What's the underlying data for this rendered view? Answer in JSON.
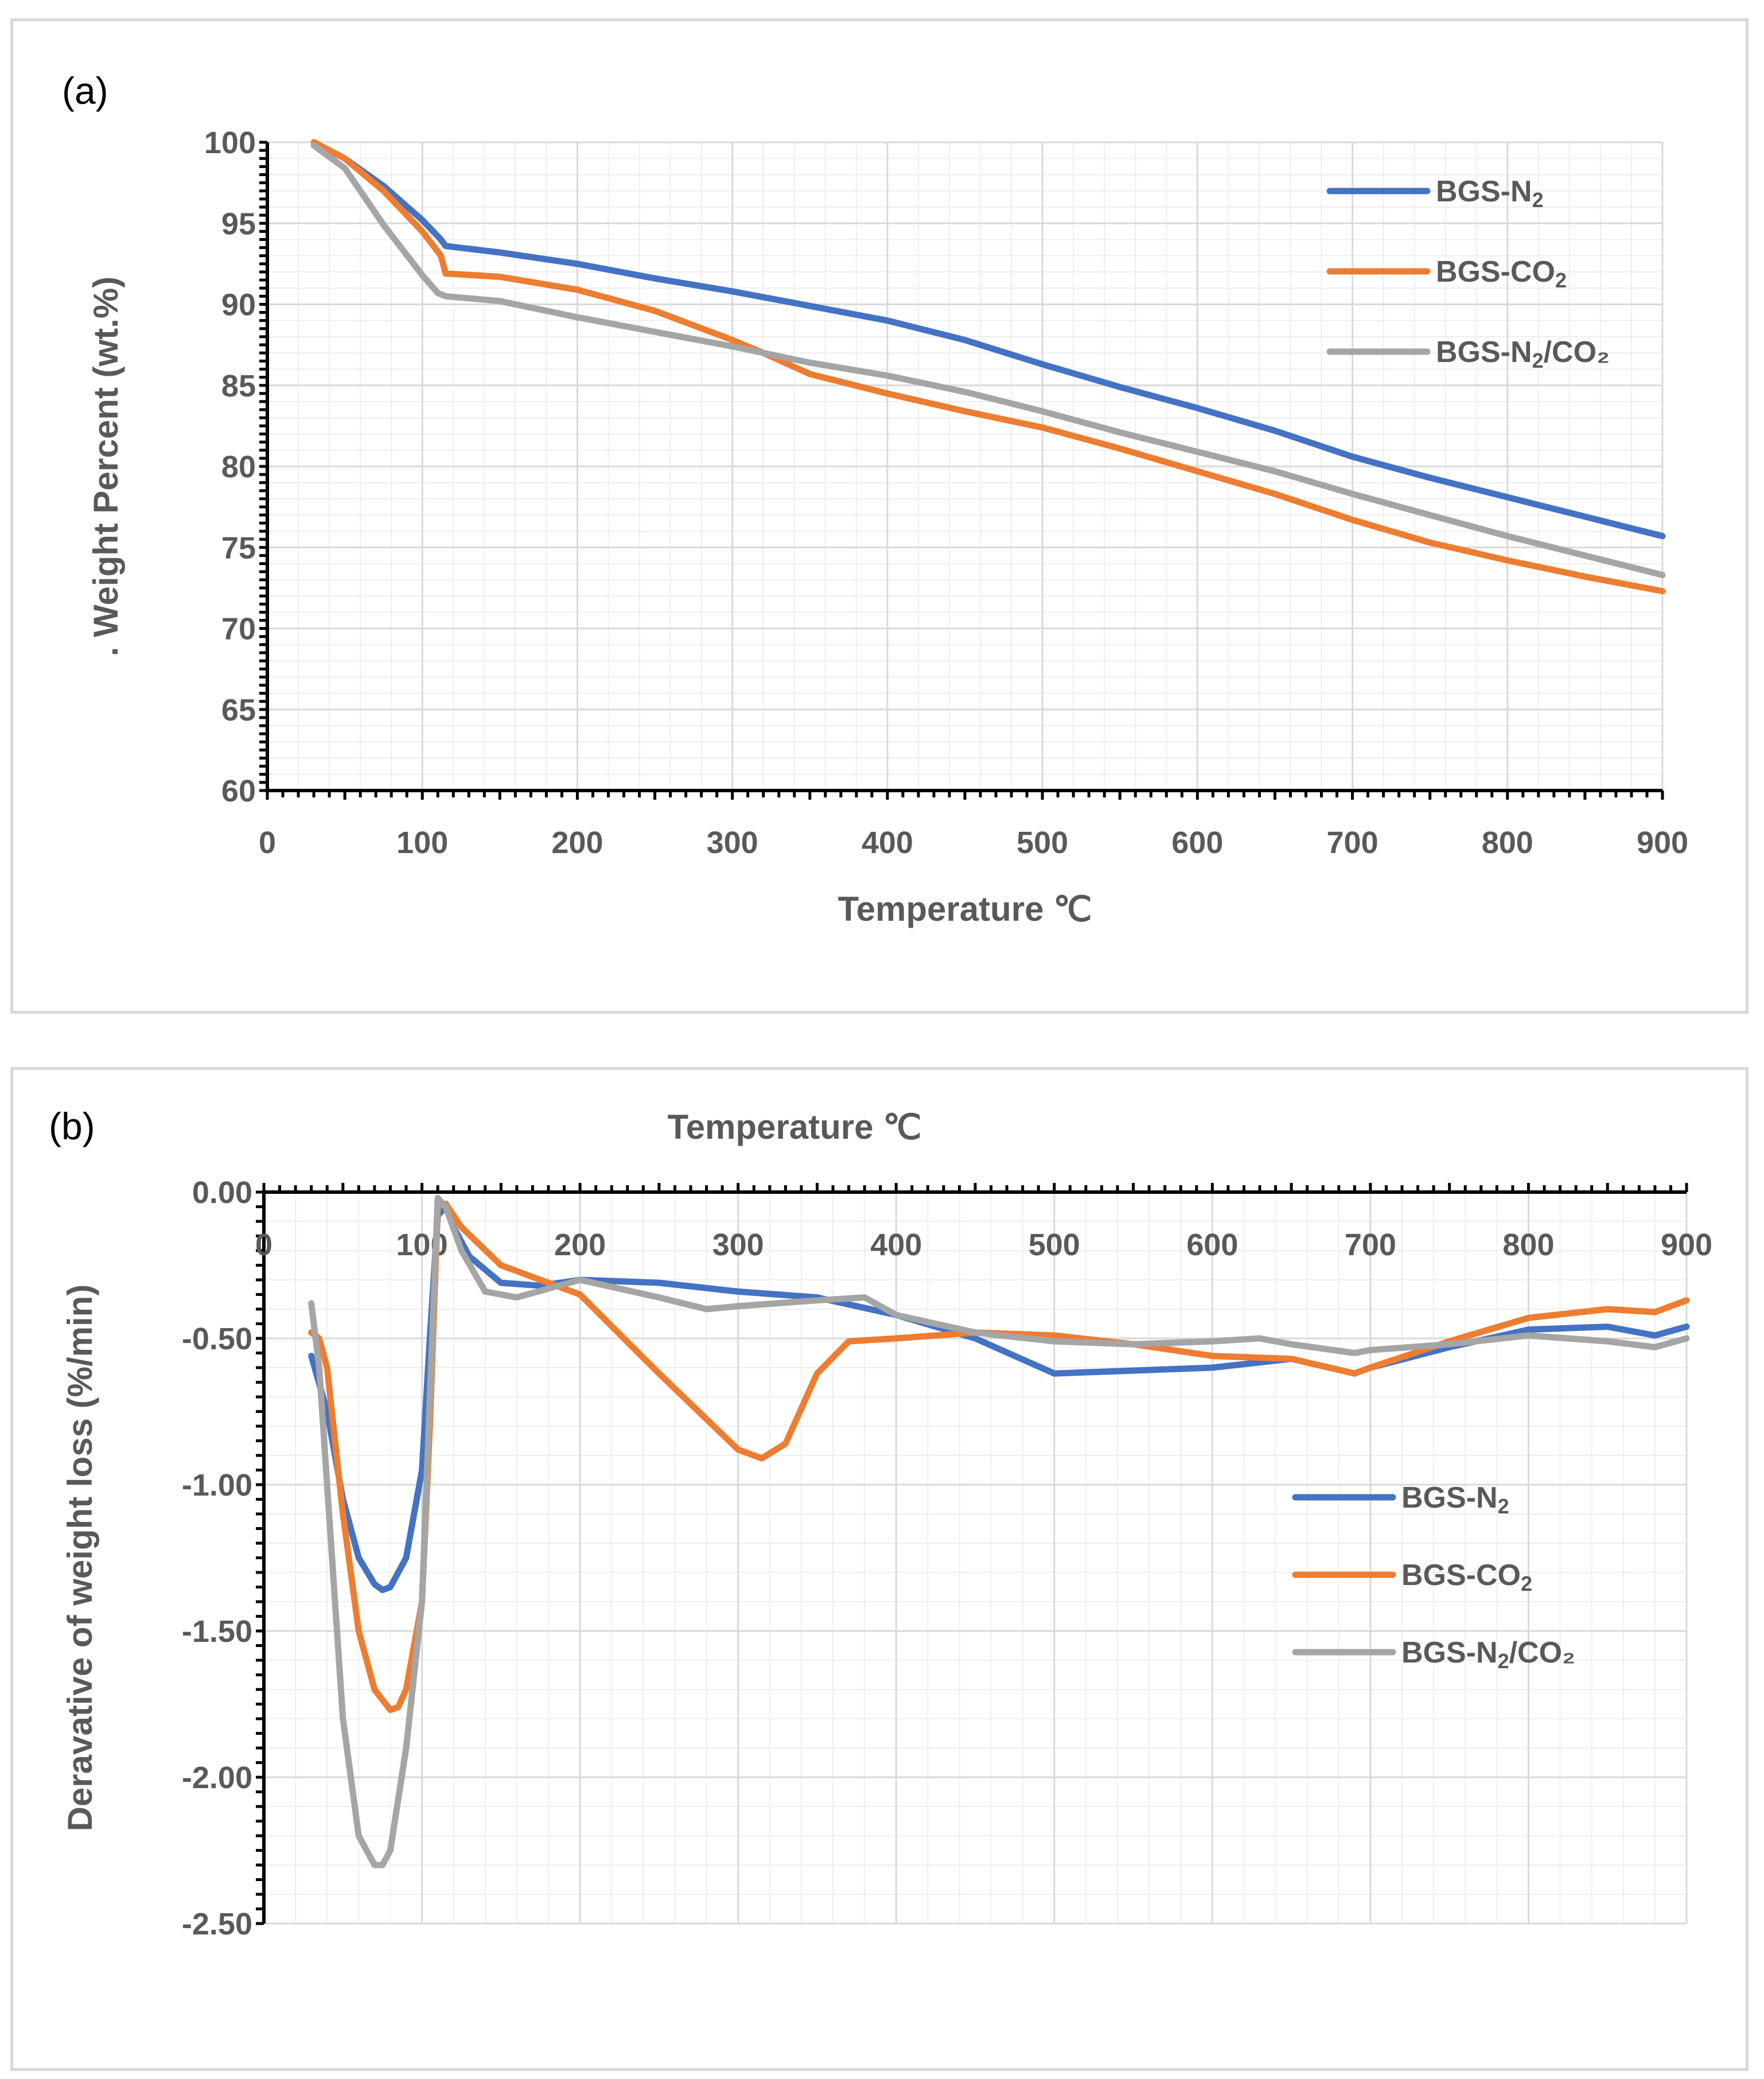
{
  "figure": {
    "panel_a_label": "(a)",
    "panel_b_label": "(b)"
  },
  "colors": {
    "BGS-N2": "#4472c4",
    "BGS-CO2": "#ed7d31",
    "BGS-N2/CO2": "#a5a5a5",
    "axis": "#000000",
    "grid_major": "#d9d9d9",
    "grid_minor": "#eeeeee",
    "text": "#595959"
  },
  "chart_data": [
    {
      "id": "a",
      "type": "line",
      "title": "",
      "xlabel": "Temperature ℃",
      "ylabel": ". Weight Percent (wt.%)",
      "xlim": [
        0,
        900
      ],
      "ylim": [
        60,
        100
      ],
      "xticks": [
        0,
        100,
        200,
        300,
        400,
        500,
        600,
        700,
        800,
        900
      ],
      "yticks": [
        60,
        65,
        70,
        75,
        80,
        85,
        90,
        95,
        100
      ],
      "x_tick_labels": [
        "0",
        "100",
        "200",
        "300",
        "400",
        "500",
        "600",
        "700",
        "800",
        "900"
      ],
      "y_tick_labels": [
        "60",
        "65",
        "70",
        "75",
        "80",
        "85",
        "90",
        "95",
        "100"
      ],
      "legend": {
        "position": "top-right",
        "entries": [
          {
            "base": "BGS-N",
            "sub": "2",
            "tail": ""
          },
          {
            "base": "BGS-CO",
            "sub": "2",
            "tail": ""
          },
          {
            "base": "BGS-N",
            "sub": "2",
            "tail": "/CO₂"
          }
        ]
      },
      "series": [
        {
          "name": "BGS-N2",
          "color": "#4472c4",
          "x": [
            30,
            50,
            75,
            100,
            112,
            115,
            150,
            200,
            250,
            300,
            350,
            400,
            450,
            500,
            550,
            600,
            650,
            700,
            750,
            800,
            850,
            900
          ],
          "y": [
            100,
            99,
            97.3,
            95.2,
            94,
            93.6,
            93.2,
            92.5,
            91.6,
            90.8,
            89.9,
            89.0,
            87.8,
            86.3,
            84.9,
            83.6,
            82.2,
            80.6,
            79.3,
            78.1,
            76.9,
            75.7
          ]
        },
        {
          "name": "BGS-CO2",
          "color": "#ed7d31",
          "x": [
            30,
            50,
            75,
            100,
            112,
            115,
            150,
            200,
            250,
            300,
            320,
            350,
            400,
            450,
            500,
            550,
            600,
            650,
            700,
            750,
            800,
            850,
            900
          ],
          "y": [
            100,
            99,
            97,
            94.5,
            93,
            91.9,
            91.7,
            90.9,
            89.6,
            87.8,
            87.0,
            85.7,
            84.5,
            83.4,
            82.4,
            81.1,
            79.7,
            78.3,
            76.7,
            75.3,
            74.2,
            73.2,
            72.3
          ]
        },
        {
          "name": "BGS-N2/CO2",
          "color": "#a5a5a5",
          "x": [
            30,
            50,
            75,
            100,
            110,
            115,
            150,
            200,
            250,
            300,
            350,
            400,
            450,
            500,
            550,
            600,
            650,
            700,
            750,
            800,
            850,
            900
          ],
          "y": [
            99.8,
            98.4,
            94.9,
            91.8,
            90.7,
            90.5,
            90.2,
            89.2,
            88.3,
            87.4,
            86.4,
            85.6,
            84.6,
            83.4,
            82.1,
            80.9,
            79.7,
            78.3,
            77.0,
            75.7,
            74.5,
            73.3
          ]
        }
      ]
    },
    {
      "id": "b",
      "type": "line",
      "title": "Temperature ℃",
      "xlabel": "",
      "ylabel": "Deravative of weight loss (%/min)",
      "xlim": [
        0,
        900
      ],
      "ylim": [
        -2.5,
        0
      ],
      "xticks": [
        0,
        100,
        200,
        300,
        400,
        500,
        600,
        700,
        800,
        900
      ],
      "yticks": [
        0,
        -0.5,
        -1.0,
        -1.5,
        -2.0,
        -2.5
      ],
      "x_tick_labels": [
        "0",
        "100",
        "200",
        "300",
        "400",
        "500",
        "600",
        "700",
        "800",
        "900"
      ],
      "y_tick_labels": [
        "0.00",
        "-0.50",
        "-1.00",
        "-1.50",
        "-2.00",
        "-2.50"
      ],
      "legend": {
        "position": "center-right",
        "entries": [
          {
            "base": "BGS-N",
            "sub": "2",
            "tail": ""
          },
          {
            "base": "BGS-CO",
            "sub": "2",
            "tail": ""
          },
          {
            "base": "BGS-N",
            "sub": "2",
            "tail": "/CO₂"
          }
        ]
      },
      "series": [
        {
          "name": "BGS-N2",
          "color": "#4472c4",
          "x": [
            30,
            40,
            50,
            60,
            70,
            75,
            80,
            90,
            100,
            105,
            110,
            115,
            120,
            130,
            150,
            175,
            200,
            250,
            300,
            350,
            400,
            450,
            500,
            550,
            600,
            650,
            690,
            700,
            750,
            800,
            850,
            880,
            900
          ],
          "y": [
            -0.56,
            -0.75,
            -1.05,
            -1.25,
            -1.34,
            -1.36,
            -1.35,
            -1.25,
            -0.95,
            -0.5,
            -0.08,
            -0.05,
            -0.12,
            -0.22,
            -0.31,
            -0.32,
            -0.3,
            -0.31,
            -0.34,
            -0.36,
            -0.42,
            -0.5,
            -0.62,
            -0.61,
            -0.6,
            -0.57,
            -0.62,
            -0.6,
            -0.53,
            -0.47,
            -0.46,
            -0.49,
            -0.46
          ]
        },
        {
          "name": "BGS-CO2",
          "color": "#ed7d31",
          "x": [
            30,
            35,
            40,
            50,
            60,
            70,
            80,
            85,
            90,
            100,
            105,
            110,
            115,
            125,
            150,
            200,
            250,
            300,
            315,
            330,
            350,
            370,
            400,
            450,
            500,
            550,
            600,
            650,
            690,
            700,
            750,
            800,
            850,
            880,
            900
          ],
          "y": [
            -0.48,
            -0.5,
            -0.6,
            -1.1,
            -1.5,
            -1.7,
            -1.77,
            -1.76,
            -1.7,
            -1.4,
            -0.8,
            -0.05,
            -0.04,
            -0.12,
            -0.25,
            -0.35,
            -0.62,
            -0.88,
            -0.91,
            -0.86,
            -0.62,
            -0.51,
            -0.5,
            -0.48,
            -0.49,
            -0.52,
            -0.56,
            -0.57,
            -0.62,
            -0.6,
            -0.51,
            -0.43,
            -0.4,
            -0.41,
            -0.37
          ]
        },
        {
          "name": "BGS-N2/CO2",
          "color": "#a5a5a5",
          "x": [
            30,
            35,
            40,
            50,
            60,
            70,
            75,
            80,
            90,
            100,
            105,
            110,
            115,
            125,
            140,
            160,
            200,
            250,
            280,
            300,
            350,
            380,
            400,
            450,
            500,
            550,
            600,
            630,
            650,
            690,
            700,
            750,
            800,
            850,
            880,
            900
          ],
          "y": [
            -0.38,
            -0.6,
            -1.0,
            -1.8,
            -2.2,
            -2.3,
            -2.3,
            -2.25,
            -1.9,
            -1.4,
            -0.7,
            -0.02,
            -0.05,
            -0.2,
            -0.34,
            -0.36,
            -0.3,
            -0.36,
            -0.4,
            -0.39,
            -0.37,
            -0.36,
            -0.42,
            -0.48,
            -0.51,
            -0.52,
            -0.51,
            -0.5,
            -0.52,
            -0.55,
            -0.54,
            -0.52,
            -0.49,
            -0.51,
            -0.53,
            -0.5
          ]
        }
      ]
    }
  ]
}
